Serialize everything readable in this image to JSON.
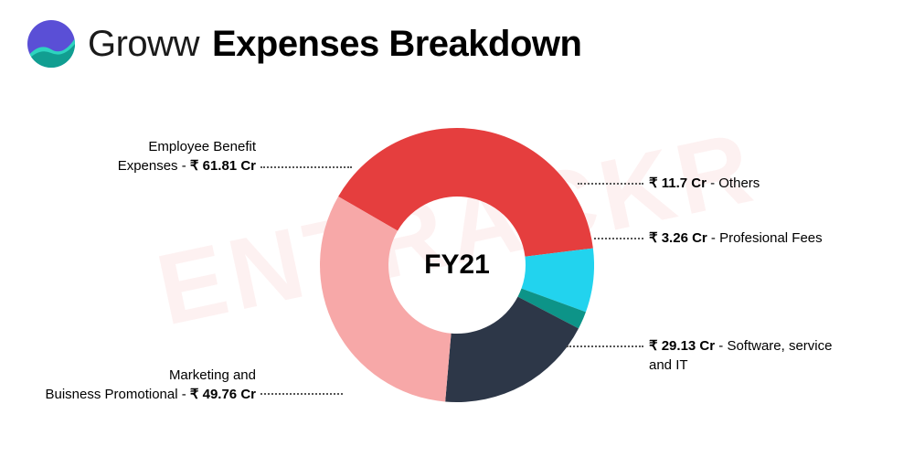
{
  "brand": "Groww",
  "title": "Expenses Breakdown",
  "watermark": "ENTRACKR",
  "chart": {
    "type": "donut",
    "center_label": "FY21",
    "center_fontsize": 30,
    "inner_radius_pct": 50,
    "outer_radius_pct": 100,
    "background_color": "#ffffff",
    "slices": [
      {
        "label": "Employee Benefit Expenses",
        "value": 61.81,
        "value_text": "₹ 61.81 Cr",
        "color": "#e53e3e"
      },
      {
        "label": "Others",
        "value": 11.7,
        "value_text": "₹ 11.7 Cr",
        "color": "#22d3ee"
      },
      {
        "label": "Profesional Fees",
        "value": 3.26,
        "value_text": "₹ 3.26 Cr",
        "color": "#0d9488"
      },
      {
        "label": "Software, service and IT",
        "value": 29.13,
        "value_text": "₹ 29.13 Cr",
        "color": "#2d3748"
      },
      {
        "label": "Marketing and Buisness Promotional",
        "value": 49.76,
        "value_text": "₹ 49.76 Cr",
        "color": "#f7a8a8"
      }
    ]
  },
  "logo": {
    "bg": "#5a4fd6",
    "wave1": "#2dd4bf",
    "wave2": "#0d9488"
  },
  "callouts": {
    "c0": {
      "label": "Employee Benefit\nExpenses",
      "value": "₹ 61.81 Cr"
    },
    "c1": {
      "label": "Others",
      "value": "₹ 11.7 Cr"
    },
    "c2": {
      "label": "Profesional Fees",
      "value": "₹ 3.26 Cr"
    },
    "c3": {
      "label": "Software, service\nand IT",
      "value": "₹ 29.13 Cr"
    },
    "c4": {
      "label": "Marketing and\nBuisness Promotional",
      "value": "₹ 49.76 Cr"
    }
  }
}
